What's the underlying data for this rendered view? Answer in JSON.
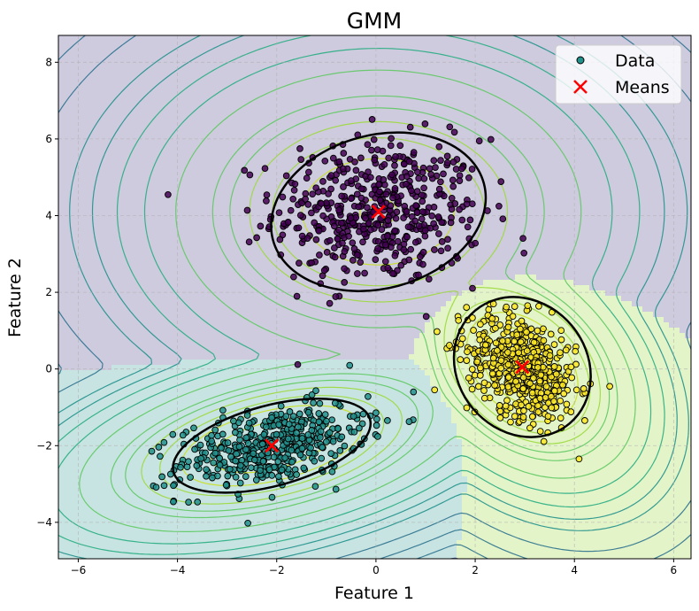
{
  "chart_data": {
    "type": "scatter",
    "title": "GMM",
    "xlabel": "Feature 1",
    "ylabel": "Feature 2",
    "xlim": [
      -6.4,
      6.35
    ],
    "ylim": [
      -4.95,
      8.7
    ],
    "xticks": [
      -6,
      -4,
      -2,
      0,
      2,
      4,
      6
    ],
    "yticks": [
      -4,
      -2,
      0,
      2,
      4,
      6,
      8
    ],
    "grid": true,
    "legend": {
      "placement": "top-right",
      "entries": [
        {
          "label": "Data",
          "marker": "circle"
        },
        {
          "label": "Means",
          "marker": "x"
        }
      ]
    },
    "components": [
      {
        "id": "cluster-1",
        "color": "#440154",
        "region_color": "#cfcbdf",
        "mean": [
          0.05,
          4.1
        ],
        "std": [
          1.05,
          0.95
        ],
        "rho": 0.0,
        "n": 500,
        "ellipse_radii": [
          2.2,
          2.0
        ],
        "ellipse_angle_deg": 15
      },
      {
        "id": "cluster-2",
        "color": "#21918c",
        "region_color": "#c8e4e2",
        "mean": [
          -2.1,
          -2.0
        ],
        "std": [
          0.95,
          0.55
        ],
        "rho": 0.45,
        "n": 450,
        "ellipse_radii": [
          2.05,
          1.05
        ],
        "ellipse_angle_deg": 15
      },
      {
        "id": "cluster-3",
        "color": "#fde725",
        "region_color": "#e3f4c8",
        "mean": [
          2.95,
          0.05
        ],
        "std": [
          0.55,
          0.7
        ],
        "rho": -0.35,
        "n": 550,
        "ellipse_radii": [
          1.3,
          1.92
        ],
        "ellipse_angle_deg": 40
      }
    ],
    "means_marker_color": "#ff0000",
    "contour_colors": [
      "#440154",
      "#3b528b",
      "#2c728e",
      "#21918c",
      "#27ad81",
      "#5ec962",
      "#9bd93c",
      "#c8e020"
    ]
  }
}
